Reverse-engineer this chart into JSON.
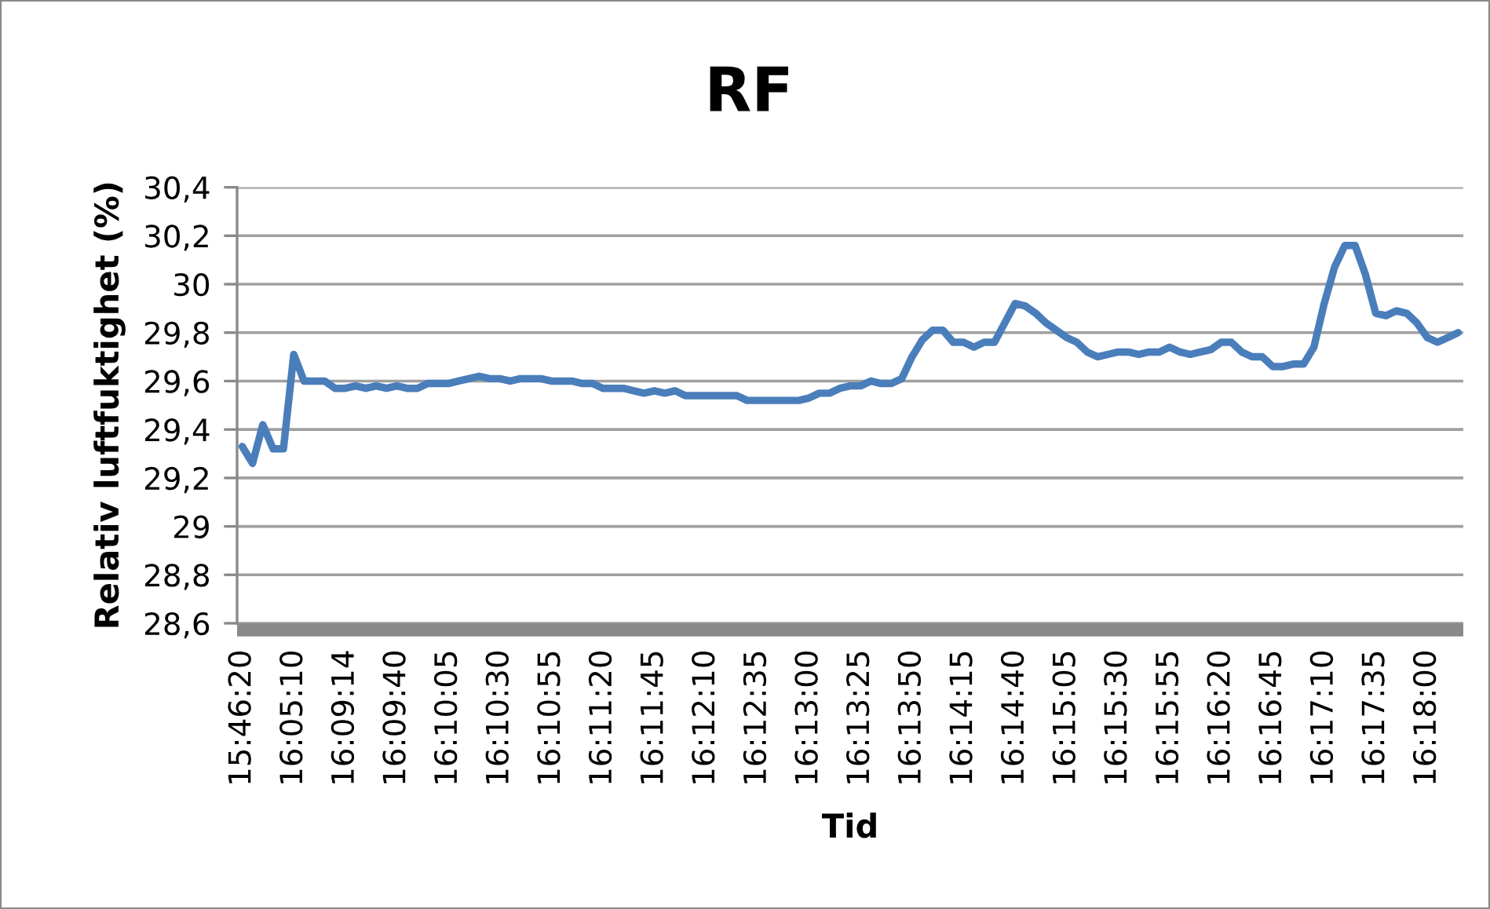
{
  "chart_data": {
    "type": "line",
    "title": "RF",
    "xlabel": "Tid",
    "ylabel": "Relativ luftfuktighet (%)",
    "categories": [
      "15:46:20",
      null,
      null,
      null,
      null,
      "16:05:10",
      null,
      null,
      null,
      null,
      "16:09:14",
      null,
      null,
      null,
      null,
      "16:09:40",
      null,
      null,
      null,
      null,
      "16:10:05",
      null,
      null,
      null,
      null,
      "16:10:30",
      null,
      null,
      null,
      null,
      "16:10:55",
      null,
      null,
      null,
      null,
      "16:11:20",
      null,
      null,
      null,
      null,
      "16:11:45",
      null,
      null,
      null,
      null,
      "16:12:10",
      null,
      null,
      null,
      null,
      "16:12:35",
      null,
      null,
      null,
      null,
      "16:13:00",
      null,
      null,
      null,
      null,
      "16:13:25",
      null,
      null,
      null,
      null,
      "16:13:50",
      null,
      null,
      null,
      null,
      "16:14:15",
      null,
      null,
      null,
      null,
      "16:14:40",
      null,
      null,
      null,
      null,
      "16:15:05",
      null,
      null,
      null,
      null,
      "16:15:30",
      null,
      null,
      null,
      null,
      "16:15:55",
      null,
      null,
      null,
      null,
      "16:16:20",
      null,
      null,
      null,
      null,
      "16:16:45",
      null,
      null,
      null,
      null,
      "16:17:10",
      null,
      null,
      null,
      null,
      "16:17:35",
      null,
      null,
      null,
      null,
      "16:18:00",
      null,
      null,
      null
    ],
    "series": [
      {
        "color": "#4a7ebb",
        "values": [
          29.33,
          29.26,
          29.42,
          29.32,
          29.32,
          29.71,
          29.6,
          29.6,
          29.6,
          29.57,
          29.57,
          29.58,
          29.57,
          29.58,
          29.57,
          29.58,
          29.57,
          29.57,
          29.59,
          29.59,
          29.59,
          29.6,
          29.61,
          29.62,
          29.61,
          29.61,
          29.6,
          29.61,
          29.61,
          29.61,
          29.6,
          29.6,
          29.6,
          29.59,
          29.59,
          29.57,
          29.57,
          29.57,
          29.56,
          29.55,
          29.56,
          29.55,
          29.56,
          29.54,
          29.54,
          29.54,
          29.54,
          29.54,
          29.54,
          29.52,
          29.52,
          29.52,
          29.52,
          29.52,
          29.52,
          29.53,
          29.55,
          29.55,
          29.57,
          29.58,
          29.58,
          29.6,
          29.59,
          29.59,
          29.61,
          29.7,
          29.77,
          29.81,
          29.81,
          29.76,
          29.76,
          29.74,
          29.76,
          29.76,
          29.84,
          29.92,
          29.91,
          29.88,
          29.84,
          29.81,
          29.78,
          29.76,
          29.72,
          29.7,
          29.71,
          29.72,
          29.72,
          29.71,
          29.72,
          29.72,
          29.74,
          29.72,
          29.71,
          29.72,
          29.73,
          29.76,
          29.76,
          29.72,
          29.7,
          29.7,
          29.66,
          29.66,
          29.67,
          29.67,
          29.74,
          29.92,
          30.07,
          30.16,
          30.16,
          30.04,
          29.88,
          29.87,
          29.89,
          29.88,
          29.84,
          29.78,
          29.76,
          29.78,
          29.8
        ]
      }
    ],
    "ylim": [
      28.6,
      30.4
    ],
    "yticks": [
      {
        "value": 28.6,
        "label": "28,6"
      },
      {
        "value": 28.8,
        "label": "28,8"
      },
      29,
      {
        "value": 29.2,
        "label": "29,2"
      },
      {
        "value": 29.4,
        "label": "29,4"
      },
      {
        "value": 29.6,
        "label": "29,6"
      },
      {
        "value": 29.8,
        "label": "29,8"
      },
      30,
      {
        "value": 30.2,
        "label": "30,2"
      },
      {
        "value": 30.4,
        "label": "30,4"
      }
    ],
    "grid": "y"
  }
}
